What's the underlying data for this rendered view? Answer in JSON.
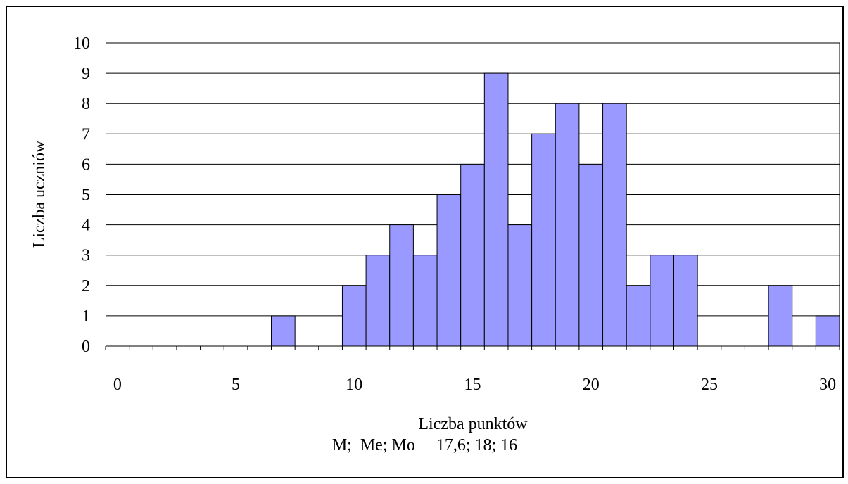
{
  "chart_data": {
    "type": "bar",
    "x": [
      7,
      10,
      11,
      12,
      13,
      14,
      15,
      16,
      17,
      18,
      19,
      20,
      21,
      22,
      23,
      24,
      28,
      30
    ],
    "values": [
      1,
      2,
      3,
      4,
      3,
      5,
      6,
      9,
      4,
      7,
      8,
      6,
      8,
      2,
      3,
      3,
      2,
      1
    ],
    "xlabel": "Liczba punktów",
    "ylabel": "Liczba uczniów",
    "xlim": [
      0,
      30
    ],
    "ylim": [
      0,
      10
    ],
    "x_ticks": [
      "0",
      "5",
      "10",
      "15",
      "20",
      "25",
      "30"
    ],
    "y_ticks": [
      "0",
      "1",
      "2",
      "3",
      "4",
      "5",
      "6",
      "7",
      "8",
      "9",
      "10"
    ],
    "grid": "horizontal",
    "bar_color": "#9999ff",
    "legend": "none"
  },
  "caption": {
    "stats_label": "M;  Me; Mo",
    "stats_values": "17,6; 18; 16"
  }
}
